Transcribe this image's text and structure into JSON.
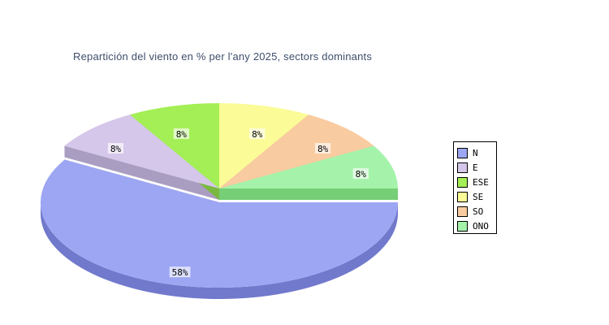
{
  "chart_data": {
    "type": "pie",
    "style": "3d-exploded-pie",
    "title": "Repartición del viento en % per l'any 2025, sectors dominants",
    "title_color": "#3f4e6c",
    "legend_position": "right",
    "start_angle_deg": 90,
    "direction": "clockwise",
    "slices": [
      {
        "name": "N",
        "percent_label": "58%",
        "value_percent": 58,
        "fraction": 0.58333,
        "color": "#9da6f3",
        "side_color": "#7179cc",
        "exploded": true
      },
      {
        "name": "E",
        "percent_label": "8%",
        "value_percent": 8,
        "fraction": 0.08333,
        "color": "#d5c7ea",
        "side_color": "#a99ec1",
        "exploded": false
      },
      {
        "name": "ESE",
        "percent_label": "8%",
        "value_percent": 8,
        "fraction": 0.08333,
        "color": "#a3ef55",
        "side_color": "#7ab83f",
        "exploded": false
      },
      {
        "name": "SE",
        "percent_label": "8%",
        "value_percent": 8,
        "fraction": 0.08333,
        "color": "#fbfb98",
        "side_color": "#c6c66f",
        "exploded": false
      },
      {
        "name": "SO",
        "percent_label": "8%",
        "value_percent": 8,
        "fraction": 0.08333,
        "color": "#f9cba0",
        "side_color": "#c69a74",
        "exploded": false
      },
      {
        "name": "ONO",
        "percent_label": "8%",
        "value_percent": 8,
        "fraction": 0.08333,
        "color": "#a5f3ab",
        "side_color": "#76ce76",
        "exploded": false
      }
    ],
    "label_style": {
      "text_color": "#000000",
      "background": "rgba(255,255,255,0.66)"
    }
  }
}
